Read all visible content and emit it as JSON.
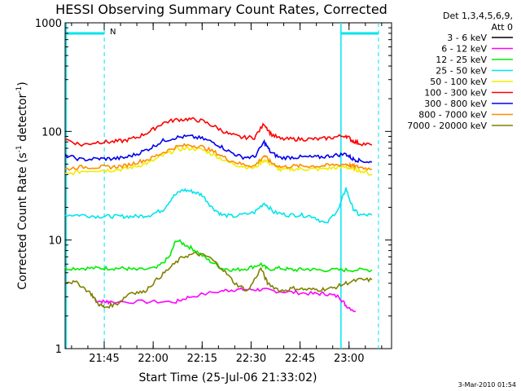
{
  "chart_data": {
    "type": "line",
    "title": "HESSI Observing Summary Count Rates, Corrected",
    "xlabel": "Start Time (25-Jul-06 21:33:02)",
    "ylabel_main": "Corrected Count Rate (s",
    "ylabel_sup1": "-1",
    "ylabel_mid": " detector",
    "ylabel_sup2": "-1",
    "ylabel_end": ")",
    "yscale": "log",
    "ylim": [
      1,
      1000
    ],
    "xlim_minutes": [
      0,
      100
    ],
    "x_ticks": [
      "21:45",
      "22:00",
      "22:15",
      "22:30",
      "22:45",
      "23:00"
    ],
    "y_ticks": [
      "1",
      "10",
      "100",
      "1000"
    ],
    "legend_header": [
      "Det 1,3,4,5,6,9,",
      "Att 0"
    ],
    "night_label": "N",
    "timestamp": "3-Mar-2010 01:54",
    "series": [
      {
        "name": "3 - 6 keV",
        "color": "#000000",
        "values": []
      },
      {
        "name": "6 - 12 keV",
        "color": "#ff00ff",
        "points": [
          [
            9,
            2.8
          ],
          [
            12,
            2.7
          ],
          [
            14,
            2.7
          ],
          [
            25,
            2.7
          ],
          [
            34,
            2.7
          ],
          [
            38,
            3.0
          ],
          [
            48,
            3.4
          ],
          [
            52,
            3.5
          ],
          [
            56,
            3.5
          ],
          [
            60,
            3.5
          ],
          [
            64,
            3.4
          ],
          [
            70,
            3.3
          ],
          [
            76,
            3.2
          ],
          [
            80,
            3.2
          ],
          [
            84,
            3.0
          ],
          [
            86,
            2.5
          ],
          [
            89,
            2.2
          ]
        ]
      },
      {
        "name": "12 - 25 keV",
        "color": "#00ee00",
        "points": [
          [
            0,
            5.5
          ],
          [
            5,
            5.5
          ],
          [
            10,
            5.5
          ],
          [
            14,
            5.5
          ],
          [
            18,
            5.5
          ],
          [
            22,
            5.3
          ],
          [
            28,
            5.5
          ],
          [
            32,
            7
          ],
          [
            34,
            10
          ],
          [
            37,
            9
          ],
          [
            40,
            8
          ],
          [
            44,
            6.5
          ],
          [
            48,
            5.5
          ],
          [
            52,
            5.3
          ],
          [
            56,
            5.5
          ],
          [
            60,
            6
          ],
          [
            62,
            5.4
          ],
          [
            66,
            5.5
          ],
          [
            70,
            5.3
          ],
          [
            74,
            5.4
          ],
          [
            78,
            5.3
          ],
          [
            84,
            5.3
          ],
          [
            88,
            5.3
          ],
          [
            94,
            5.3
          ]
        ]
      },
      {
        "name": "25 - 50 keV",
        "color": "#00e5ee",
        "points": [
          [
            0,
            17
          ],
          [
            5,
            17
          ],
          [
            10,
            16.5
          ],
          [
            14,
            16.5
          ],
          [
            18,
            16.5
          ],
          [
            22,
            16.5
          ],
          [
            26,
            17
          ],
          [
            30,
            19
          ],
          [
            33,
            25
          ],
          [
            36,
            29
          ],
          [
            39,
            28
          ],
          [
            42,
            26
          ],
          [
            45,
            20
          ],
          [
            48,
            17
          ],
          [
            52,
            16.5
          ],
          [
            58,
            18
          ],
          [
            61,
            22
          ],
          [
            64,
            18
          ],
          [
            68,
            17
          ],
          [
            72,
            17
          ],
          [
            76,
            16.5
          ],
          [
            80,
            14
          ],
          [
            84,
            20
          ],
          [
            86,
            30
          ],
          [
            88,
            20
          ],
          [
            90,
            17
          ],
          [
            94,
            17
          ]
        ]
      },
      {
        "name": "50 - 100 keV",
        "color": "#eeee00",
        "points": [
          [
            0,
            40
          ],
          [
            5,
            43
          ],
          [
            10,
            44
          ],
          [
            14,
            44
          ],
          [
            18,
            45
          ],
          [
            22,
            48
          ],
          [
            26,
            52
          ],
          [
            30,
            60
          ],
          [
            34,
            68
          ],
          [
            38,
            70
          ],
          [
            42,
            68
          ],
          [
            46,
            60
          ],
          [
            50,
            52
          ],
          [
            54,
            48
          ],
          [
            58,
            46
          ],
          [
            61,
            55
          ],
          [
            63,
            50
          ],
          [
            66,
            44
          ],
          [
            70,
            45
          ],
          [
            74,
            45
          ],
          [
            78,
            45
          ],
          [
            82,
            46
          ],
          [
            86,
            47
          ],
          [
            88,
            45
          ],
          [
            90,
            44
          ],
          [
            94,
            40
          ]
        ]
      },
      {
        "name": "100 - 300 keV",
        "color": "#ff0000",
        "points": [
          [
            0,
            85
          ],
          [
            5,
            75
          ],
          [
            10,
            80
          ],
          [
            14,
            80
          ],
          [
            18,
            82
          ],
          [
            22,
            88
          ],
          [
            26,
            100
          ],
          [
            30,
            120
          ],
          [
            34,
            128
          ],
          [
            38,
            130
          ],
          [
            42,
            125
          ],
          [
            46,
            110
          ],
          [
            50,
            95
          ],
          [
            54,
            88
          ],
          [
            58,
            88
          ],
          [
            61,
            118
          ],
          [
            63,
            95
          ],
          [
            66,
            85
          ],
          [
            70,
            85
          ],
          [
            74,
            85
          ],
          [
            78,
            85
          ],
          [
            82,
            88
          ],
          [
            86,
            92
          ],
          [
            88,
            82
          ],
          [
            90,
            78
          ],
          [
            94,
            75
          ]
        ]
      },
      {
        "name": "300 - 800 keV",
        "color": "#0000ee",
        "points": [
          [
            0,
            60
          ],
          [
            5,
            55
          ],
          [
            10,
            56
          ],
          [
            14,
            56
          ],
          [
            18,
            57
          ],
          [
            22,
            62
          ],
          [
            26,
            70
          ],
          [
            30,
            82
          ],
          [
            34,
            88
          ],
          [
            38,
            90
          ],
          [
            42,
            86
          ],
          [
            46,
            78
          ],
          [
            50,
            66
          ],
          [
            54,
            58
          ],
          [
            58,
            58
          ],
          [
            61,
            80
          ],
          [
            63,
            64
          ],
          [
            66,
            57
          ],
          [
            70,
            58
          ],
          [
            74,
            58
          ],
          [
            78,
            58
          ],
          [
            82,
            60
          ],
          [
            86,
            62
          ],
          [
            88,
            56
          ],
          [
            90,
            54
          ],
          [
            94,
            52
          ]
        ]
      },
      {
        "name": "800 - 7000 keV",
        "color": "#ff8c00",
        "points": [
          [
            0,
            45
          ],
          [
            5,
            47
          ],
          [
            10,
            47
          ],
          [
            14,
            47
          ],
          [
            18,
            48
          ],
          [
            22,
            52
          ],
          [
            26,
            56
          ],
          [
            30,
            64
          ],
          [
            34,
            72
          ],
          [
            38,
            75
          ],
          [
            42,
            72
          ],
          [
            46,
            64
          ],
          [
            50,
            55
          ],
          [
            54,
            50
          ],
          [
            58,
            48
          ],
          [
            61,
            60
          ],
          [
            63,
            52
          ],
          [
            66,
            47
          ],
          [
            70,
            48
          ],
          [
            74,
            48
          ],
          [
            78,
            48
          ],
          [
            82,
            49
          ],
          [
            86,
            50
          ],
          [
            88,
            48
          ],
          [
            90,
            47
          ],
          [
            94,
            45
          ]
        ]
      },
      {
        "name": "7000 - 20000 keV",
        "color": "#808000",
        "points": [
          [
            0,
            4.2
          ],
          [
            4,
            4.0
          ],
          [
            8,
            3.2
          ],
          [
            10,
            2.6
          ],
          [
            12,
            2.4
          ],
          [
            16,
            2.6
          ],
          [
            20,
            3.3
          ],
          [
            24,
            3.3
          ],
          [
            28,
            4.3
          ],
          [
            32,
            5.5
          ],
          [
            36,
            7
          ],
          [
            40,
            7.5
          ],
          [
            44,
            7
          ],
          [
            48,
            5.5
          ],
          [
            52,
            4
          ],
          [
            56,
            3.4
          ],
          [
            60,
            5.5
          ],
          [
            62,
            4
          ],
          [
            66,
            3.4
          ],
          [
            70,
            3.6
          ],
          [
            74,
            3.5
          ],
          [
            78,
            3.5
          ],
          [
            82,
            3.6
          ],
          [
            86,
            4.0
          ],
          [
            90,
            4.3
          ],
          [
            94,
            4.3
          ]
        ]
      }
    ]
  }
}
